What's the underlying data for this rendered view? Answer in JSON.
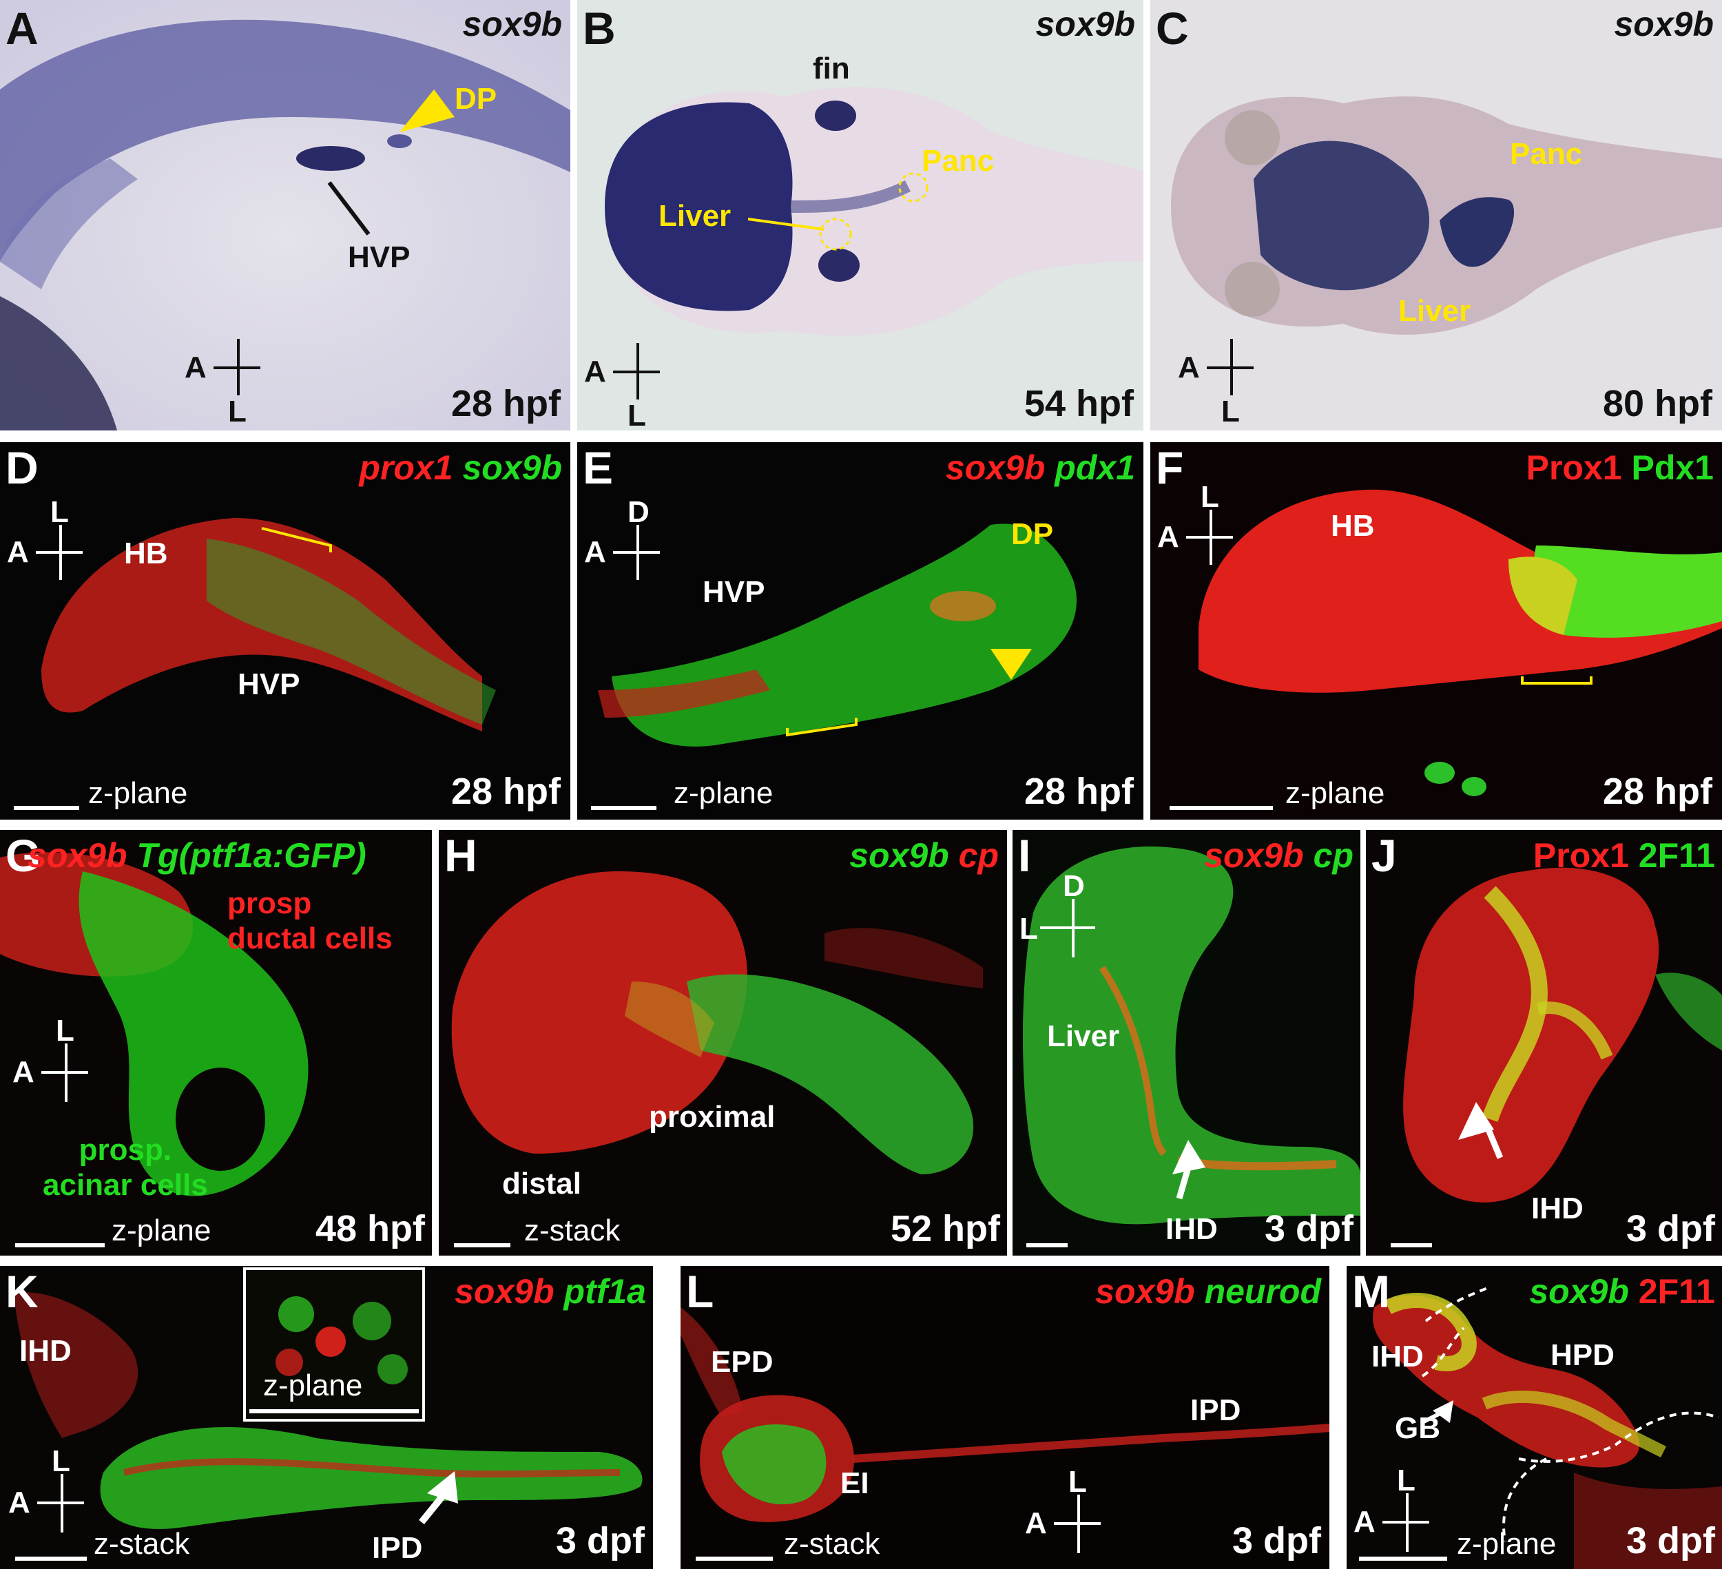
{
  "panels": {
    "A": {
      "letter": "A",
      "gene": "sox9b",
      "dp": "DP",
      "hvp": "HVP",
      "axis_a": "A",
      "axis_l": "L",
      "time": "28 hpf"
    },
    "B": {
      "letter": "B",
      "gene": "sox9b",
      "fin": "fin",
      "panc": "Panc",
      "liver": "Liver",
      "axis_a": "A",
      "axis_l": "L",
      "time": "54 hpf"
    },
    "C": {
      "letter": "C",
      "gene": "sox9b",
      "panc": "Panc",
      "liver": "Liver",
      "axis_a": "A",
      "axis_l": "L",
      "time": "80 hpf"
    },
    "D": {
      "letter": "D",
      "g1": "prox1",
      "g2": "sox9b",
      "hb": "HB",
      "hvp": "HVP",
      "axis_l": "L",
      "axis_a": "A",
      "plane": "z-plane",
      "time": "28 hpf"
    },
    "E": {
      "letter": "E",
      "g1": "sox9b",
      "g2": "pdx1",
      "dp": "DP",
      "hvp": "HVP",
      "axis_d": "D",
      "axis_a": "A",
      "plane": "z-plane",
      "time": "28 hpf"
    },
    "F": {
      "letter": "F",
      "g1": "Prox1",
      "g2": "Pdx1",
      "hb": "HB",
      "axis_l": "L",
      "axis_a": "A",
      "plane": "z-plane",
      "time": "28 hpf"
    },
    "G": {
      "letter": "G",
      "g1": "sox9b",
      "g2": "Tg(ptf1a:GFP)",
      "ductal": "prosp\nductal cells",
      "acinar": "prosp.\nacinar cells",
      "axis_l": "L",
      "axis_a": "A",
      "plane": "z-plane",
      "time": "48 hpf"
    },
    "H": {
      "letter": "H",
      "g1": "sox9b",
      "g2": "cp",
      "proximal": "proximal",
      "distal": "distal",
      "plane": "z-stack",
      "time": "52 hpf"
    },
    "I": {
      "letter": "I",
      "g1": "sox9b",
      "g2": "cp",
      "liver": "Liver",
      "ihd": "IHD",
      "axis_d": "D",
      "axis_l": "L",
      "time": "3 dpf"
    },
    "J": {
      "letter": "J",
      "g1": "Prox1",
      "g2": "2F11",
      "ihd": "IHD",
      "time": "3 dpf"
    },
    "K": {
      "letter": "K",
      "g1": "sox9b",
      "g2": "ptf1a",
      "ihd": "IHD",
      "ipd": "IPD",
      "inset_plane": "z-plane",
      "axis_l": "L",
      "axis_a": "A",
      "plane": "z-stack",
      "time": "3 dpf"
    },
    "L": {
      "letter": "L",
      "g1": "sox9b",
      "g2": "neurod",
      "epd": "EPD",
      "ei": "EI",
      "ipd": "IPD",
      "axis_l": "L",
      "axis_a": "A",
      "plane": "z-stack",
      "time": "3 dpf"
    },
    "M": {
      "letter": "M",
      "g1": "sox9b",
      "g2": "2F11",
      "ihd": "IHD",
      "hpd": "HPD",
      "gb": "GB",
      "axis_l": "L",
      "axis_a": "A",
      "plane": "z-plane",
      "time": "3 dpf"
    }
  }
}
